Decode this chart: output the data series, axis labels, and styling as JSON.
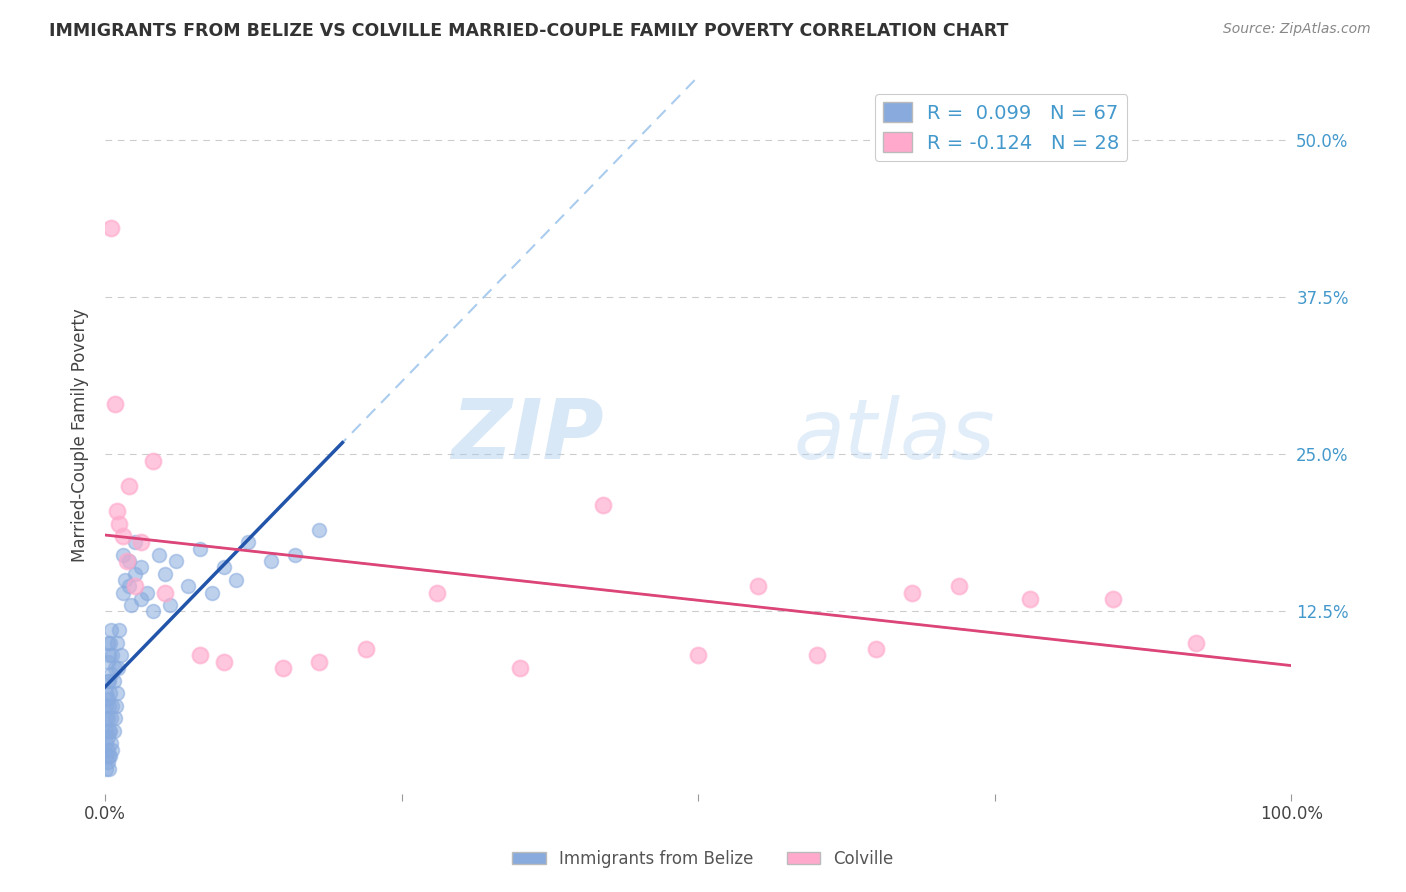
{
  "title": "IMMIGRANTS FROM BELIZE VS COLVILLE MARRIED-COUPLE FAMILY POVERTY CORRELATION CHART",
  "source": "Source: ZipAtlas.com",
  "ylabel": "Married-Couple Family Poverty",
  "legend_labels": [
    "Immigrants from Belize",
    "Colville"
  ],
  "belize_r": 0.099,
  "belize_n": 67,
  "colville_r": -0.124,
  "colville_n": 28,
  "belize_color": "#88AADD",
  "colville_color": "#FFAACC",
  "belize_line_color": "#2255AA",
  "colville_line_color": "#DD4477",
  "xlim": [
    0,
    100
  ],
  "ylim": [
    -2,
    55
  ],
  "ytick_vals": [
    12.5,
    25.0,
    37.5,
    50.0
  ],
  "ytick_labels": [
    "12.5%",
    "25.0%",
    "37.5%",
    "50.0%"
  ],
  "belize_x": [
    0.1,
    0.1,
    0.1,
    0.1,
    0.1,
    0.1,
    0.1,
    0.2,
    0.2,
    0.2,
    0.2,
    0.2,
    0.2,
    0.2,
    0.2,
    0.3,
    0.3,
    0.3,
    0.3,
    0.3,
    0.3,
    0.4,
    0.4,
    0.4,
    0.4,
    0.5,
    0.5,
    0.5,
    0.5,
    0.6,
    0.6,
    0.6,
    0.7,
    0.7,
    0.8,
    0.8,
    0.9,
    1.0,
    1.0,
    1.1,
    1.2,
    1.3,
    1.5,
    1.5,
    1.7,
    2.0,
    2.0,
    2.2,
    2.5,
    2.5,
    3.0,
    3.0,
    3.5,
    4.0,
    4.5,
    5.0,
    5.5,
    6.0,
    7.0,
    8.0,
    9.0,
    10.0,
    11.0,
    12.0,
    14.0,
    16.0,
    18.0
  ],
  "belize_y": [
    0.0,
    1.0,
    2.0,
    3.0,
    4.0,
    5.0,
    6.0,
    0.5,
    1.5,
    2.5,
    4.0,
    5.5,
    7.0,
    8.5,
    10.0,
    0.0,
    1.0,
    3.0,
    5.0,
    7.0,
    9.0,
    1.0,
    3.0,
    6.0,
    10.0,
    2.0,
    4.0,
    7.5,
    11.0,
    1.5,
    5.0,
    9.0,
    3.0,
    7.0,
    4.0,
    8.0,
    5.0,
    6.0,
    10.0,
    8.0,
    11.0,
    9.0,
    14.0,
    17.0,
    15.0,
    14.5,
    16.5,
    13.0,
    15.5,
    18.0,
    13.5,
    16.0,
    14.0,
    12.5,
    17.0,
    15.5,
    13.0,
    16.5,
    14.5,
    17.5,
    14.0,
    16.0,
    15.0,
    18.0,
    16.5,
    17.0,
    19.0
  ],
  "colville_x": [
    0.5,
    0.8,
    1.0,
    1.2,
    1.5,
    1.8,
    2.0,
    2.5,
    3.0,
    4.0,
    5.0,
    8.0,
    10.0,
    15.0,
    18.0,
    22.0,
    28.0,
    35.0,
    42.0,
    50.0,
    55.0,
    60.0,
    65.0,
    68.0,
    72.0,
    78.0,
    85.0,
    92.0
  ],
  "colville_y": [
    43.0,
    29.0,
    20.5,
    19.5,
    18.5,
    16.5,
    22.5,
    14.5,
    18.0,
    24.5,
    14.0,
    9.0,
    8.5,
    8.0,
    8.5,
    9.5,
    14.0,
    8.0,
    21.0,
    9.0,
    14.5,
    9.0,
    9.5,
    14.0,
    14.5,
    13.5,
    13.5,
    10.0
  ]
}
